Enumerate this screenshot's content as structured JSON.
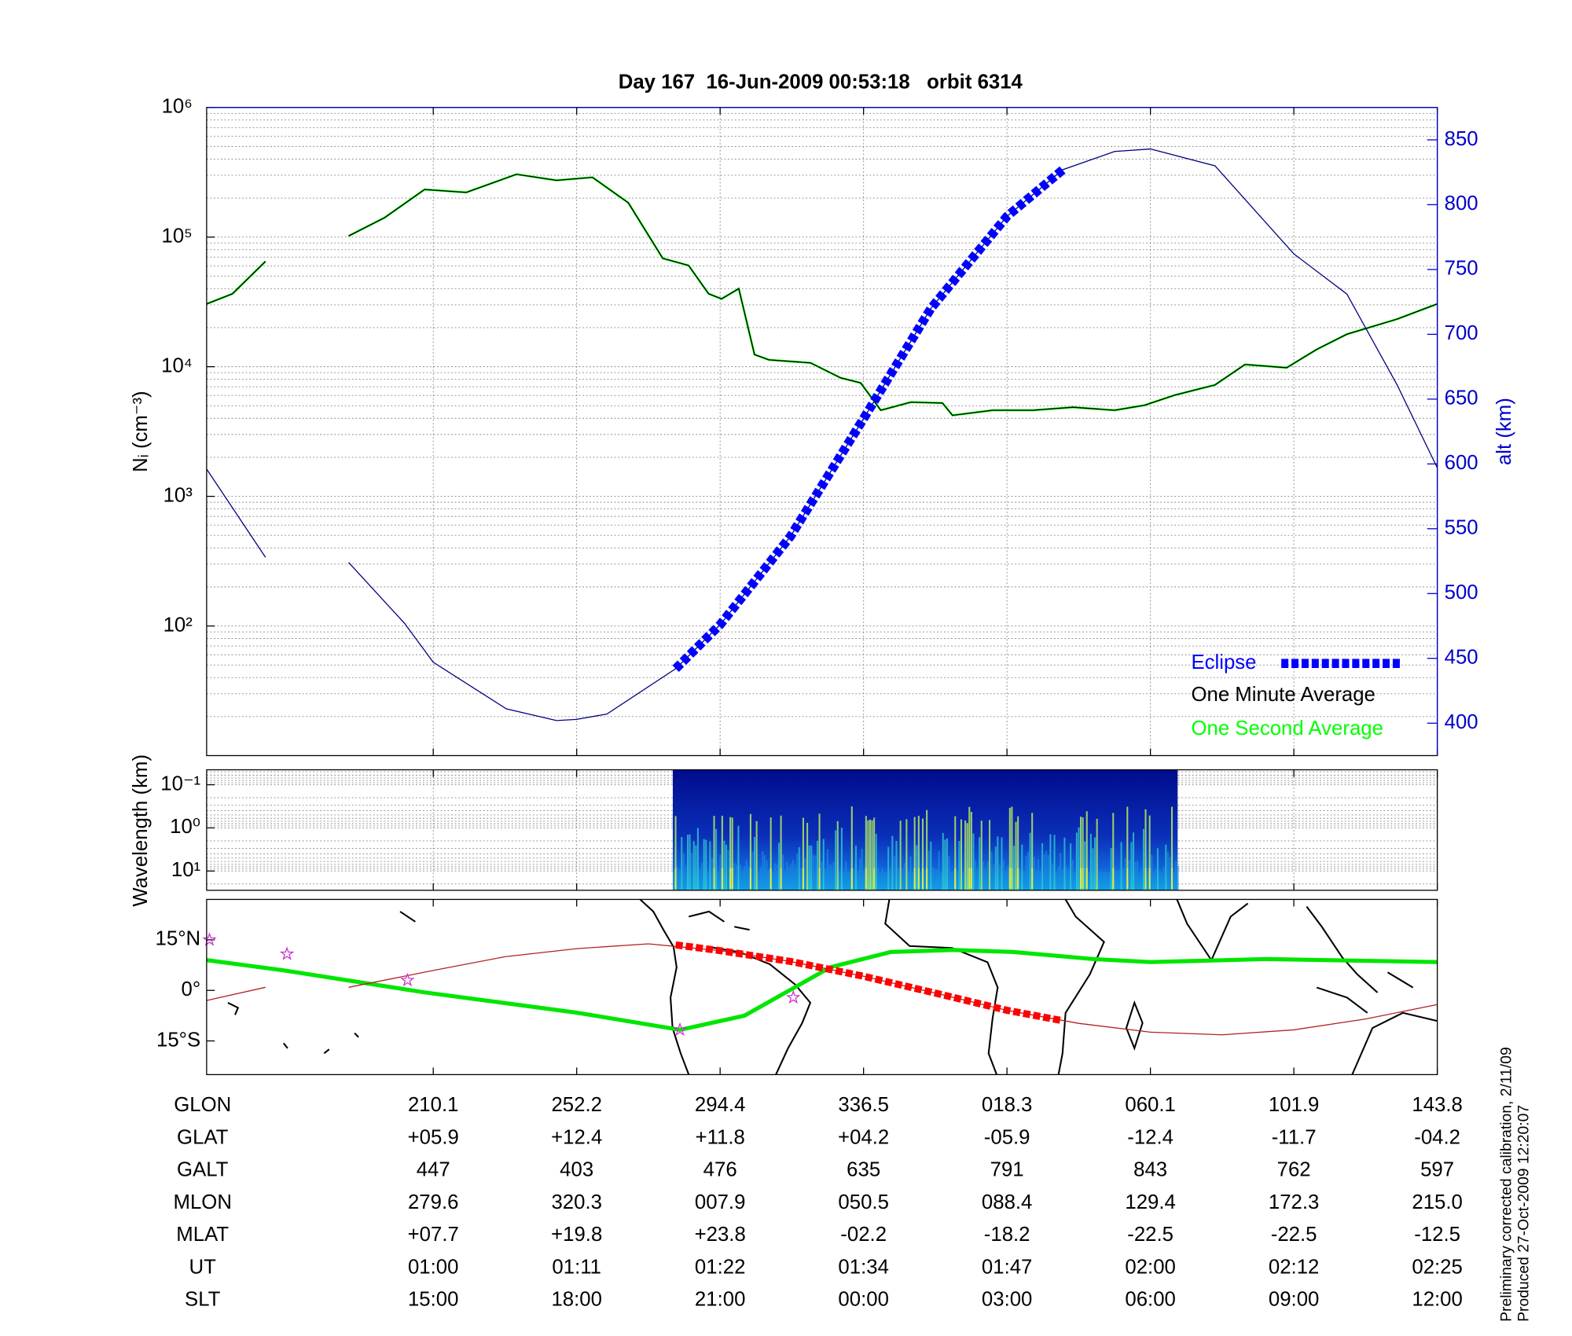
{
  "chart_data": [
    {
      "type": "line",
      "title": "Day 167  16-Jun-2009 00:53:18   orbit 6314",
      "ylabel": "Nᵢ (cm⁻³)",
      "y2label": "alt (km)",
      "log_y": true,
      "ylim": [
        10,
        1000000
      ],
      "yticks": [
        {
          "value": 100,
          "label": "10²"
        },
        {
          "value": 1000,
          "label": "10³"
        },
        {
          "value": 10000,
          "label": "10⁴"
        },
        {
          "value": 100000,
          "label": "10⁵"
        },
        {
          "value": 1000000,
          "label": "10⁶"
        }
      ],
      "y2lim": [
        375,
        875
      ],
      "y2ticks": [
        400,
        450,
        500,
        550,
        600,
        650,
        700,
        750,
        800,
        850
      ],
      "y2color": "#0000cc",
      "xlim": [
        -1.58,
        7
      ],
      "xticks": [
        0,
        1,
        2,
        3,
        4,
        5,
        6,
        7
      ],
      "grid": true,
      "legend": "lower right",
      "series": [
        {
          "name": "One Second Average",
          "color": "#00ff00",
          "x": [
            -1.58,
            -1.4,
            -1.17,
            -0.9,
            -0.59,
            -0.34,
            -0.06,
            0.23,
            0.58,
            0.86,
            1.11,
            1.36,
            1.6,
            1.78,
            1.92,
            2.01,
            2.13,
            2.24,
            2.34,
            2.63,
            2.84,
            2.98,
            3.12,
            3.33,
            3.55,
            3.62,
            3.9,
            4.18,
            4.46,
            4.75,
            4.96,
            5.17,
            5.45,
            5.66,
            5.95,
            6.16,
            6.37,
            6.72,
            7
          ],
          "values": [
            30500,
            36500,
            64900,
            null,
            102000,
            141000,
            233000,
            221000,
            305000,
            274000,
            289000,
            184000,
            68500,
            60400,
            36500,
            33400,
            40000,
            12400,
            11300,
            10700,
            8200,
            7500,
            4610,
            5330,
            5240,
            4220,
            4610,
            4610,
            4870,
            4610,
            5050,
            6040,
            7230,
            10400,
            9820,
            13600,
            17800,
            23300,
            30500
          ]
        },
        {
          "name": "One Minute Average",
          "color": "#000000",
          "x": [
            -1.58,
            -1.4,
            -1.17,
            -0.9,
            -0.59,
            -0.34,
            -0.06,
            0.23,
            0.58,
            0.86,
            1.11,
            1.36,
            1.6,
            1.78,
            1.92,
            2.01,
            2.13,
            2.24,
            2.34,
            2.63,
            2.84,
            2.98,
            3.12,
            3.33,
            3.55,
            3.62,
            3.9,
            4.18,
            4.46,
            4.75,
            4.96,
            5.17,
            5.45,
            5.66,
            5.95,
            6.16,
            6.37,
            6.72,
            7
          ],
          "values": [
            30500,
            36500,
            64900,
            null,
            102000,
            141000,
            233000,
            221000,
            305000,
            274000,
            289000,
            184000,
            68500,
            60400,
            36500,
            33400,
            40000,
            12400,
            11300,
            10700,
            8200,
            7500,
            4610,
            5330,
            5240,
            4220,
            4610,
            4610,
            4870,
            4610,
            5050,
            6040,
            7230,
            10400,
            9820,
            13600,
            17800,
            23300,
            30500
          ]
        },
        {
          "color": "#000080",
          "axis": "y2",
          "x": [
            -1.58,
            -1.17,
            -0.9,
            -0.59,
            -0.2,
            0,
            0.51,
            0.86,
            1,
            1.21,
            1.69,
            2,
            2.49,
            3,
            3.47,
            4,
            4.39,
            4.75,
            5,
            5.45,
            6,
            6.37,
            6.72,
            7
          ],
          "values": [
            596,
            528,
            null,
            524,
            477,
            447,
            411,
            402,
            403,
            407,
            442,
            476,
            544,
            635,
            720,
            791,
            827,
            841,
            843,
            830,
            762,
            731,
            661,
            597
          ]
        },
        {
          "name": "Eclipse",
          "color": "#0000ff",
          "axis": "y2",
          "x": [
            1.69,
            2,
            2.49,
            3,
            3.47,
            4,
            4.39
          ],
          "values": [
            442,
            476,
            544,
            635,
            720,
            791,
            827
          ]
        }
      ]
    },
    {
      "type": "heatmap",
      "ylabel": "Wavelength (km)",
      "log_y": true,
      "inverted_y": true,
      "ylim": [
        0.045,
        28
      ],
      "yticks": [
        {
          "value": 0.1,
          "label": "10⁻¹"
        },
        {
          "value": 1,
          "label": "10⁰"
        },
        {
          "value": 10,
          "label": "10¹"
        }
      ],
      "xlim": [
        -1.58,
        7
      ],
      "xticks": [
        0,
        1,
        2,
        3,
        4,
        5,
        6,
        7
      ],
      "grid": true,
      "x_range": [
        1.67,
        5.19
      ]
    },
    {
      "type": "map",
      "ylim": [
        -25,
        27
      ],
      "yticks": [
        {
          "value": 15,
          "label": "15°N"
        },
        {
          "value": 0,
          "label": "0°"
        },
        {
          "value": -15,
          "label": "15°S"
        }
      ],
      "xlim": [
        -1.58,
        7
      ],
      "xticks": [
        0,
        1,
        2,
        3,
        4,
        5,
        6,
        7
      ],
      "series": [
        {
          "color": "#00e600",
          "x": [
            -1.58,
            -1.05,
            -0.06,
            1,
            1.72,
            2.17,
            2.77,
            3.19,
            3.62,
            4.04,
            4.6,
            5,
            5.81,
            7
          ],
          "values": [
            9,
            6,
            -0.6,
            -6.6,
            -11.7,
            -7.5,
            6.9,
            11.4,
            12,
            11.4,
            9.3,
            8.4,
            9.3,
            8.4
          ]
        },
        {
          "color": "#b22222",
          "x": [
            -1.58,
            -1.17,
            -0.9,
            -0.59,
            0,
            0.5,
            1,
            1.5,
            2,
            2.5,
            3,
            3.5,
            4,
            4.5,
            5,
            5.5,
            6,
            6.5,
            7
          ],
          "values": [
            -3,
            0.9,
            null,
            0.9,
            5.9,
            10,
            12.4,
            13.8,
            11.8,
            8.5,
            4.2,
            -0.8,
            -5.9,
            -9.8,
            -12.4,
            -13.2,
            -11.7,
            -8.5,
            -4.2
          ]
        },
        {
          "color": "#ff0000",
          "x": [
            1.69,
            2,
            2.5,
            3,
            3.5,
            4,
            4.39
          ],
          "values": [
            13.5,
            11.8,
            8.5,
            4.2,
            -0.8,
            -5.9,
            -9
          ]
        }
      ],
      "markers": {
        "color": "#cc33cc",
        "x": [
          -1.56,
          -1.02,
          -0.18,
          1.72,
          2.51
        ],
        "values": [
          15,
          10.8,
          3,
          -11.7,
          -2.1
        ]
      }
    }
  ],
  "table": {
    "rows": [
      {
        "label": "GLON",
        "values": [
          "210.1",
          "252.2",
          "294.4",
          "336.5",
          "018.3",
          "060.1",
          "101.9",
          "143.8"
        ]
      },
      {
        "label": "GLAT",
        "values": [
          "+05.9",
          "+12.4",
          "+11.8",
          "+04.2",
          "-05.9",
          "-12.4",
          "-11.7",
          "-04.2"
        ]
      },
      {
        "label": "GALT",
        "values": [
          "447",
          "403",
          "476",
          "635",
          "791",
          "843",
          "762",
          "597"
        ]
      },
      {
        "label": "MLON",
        "values": [
          "279.6",
          "320.3",
          "007.9",
          "050.5",
          "088.4",
          "129.4",
          "172.3",
          "215.0"
        ]
      },
      {
        "label": "MLAT",
        "values": [
          "+07.7",
          "+19.8",
          "+23.8",
          "-02.2",
          "-18.2",
          "-22.5",
          "-22.5",
          "-12.5"
        ]
      },
      {
        "label": "UT",
        "values": [
          "01:00",
          "01:11",
          "01:22",
          "01:34",
          "01:47",
          "02:00",
          "02:12",
          "02:25"
        ]
      },
      {
        "label": "SLT",
        "values": [
          "15:00",
          "18:00",
          "21:00",
          "00:00",
          "03:00",
          "06:00",
          "09:00",
          "12:00"
        ]
      }
    ]
  },
  "footer": [
    "Preliminary corrected calibration, 2/11/09",
    "Produced 27-Oct-2009 12:20:07"
  ]
}
